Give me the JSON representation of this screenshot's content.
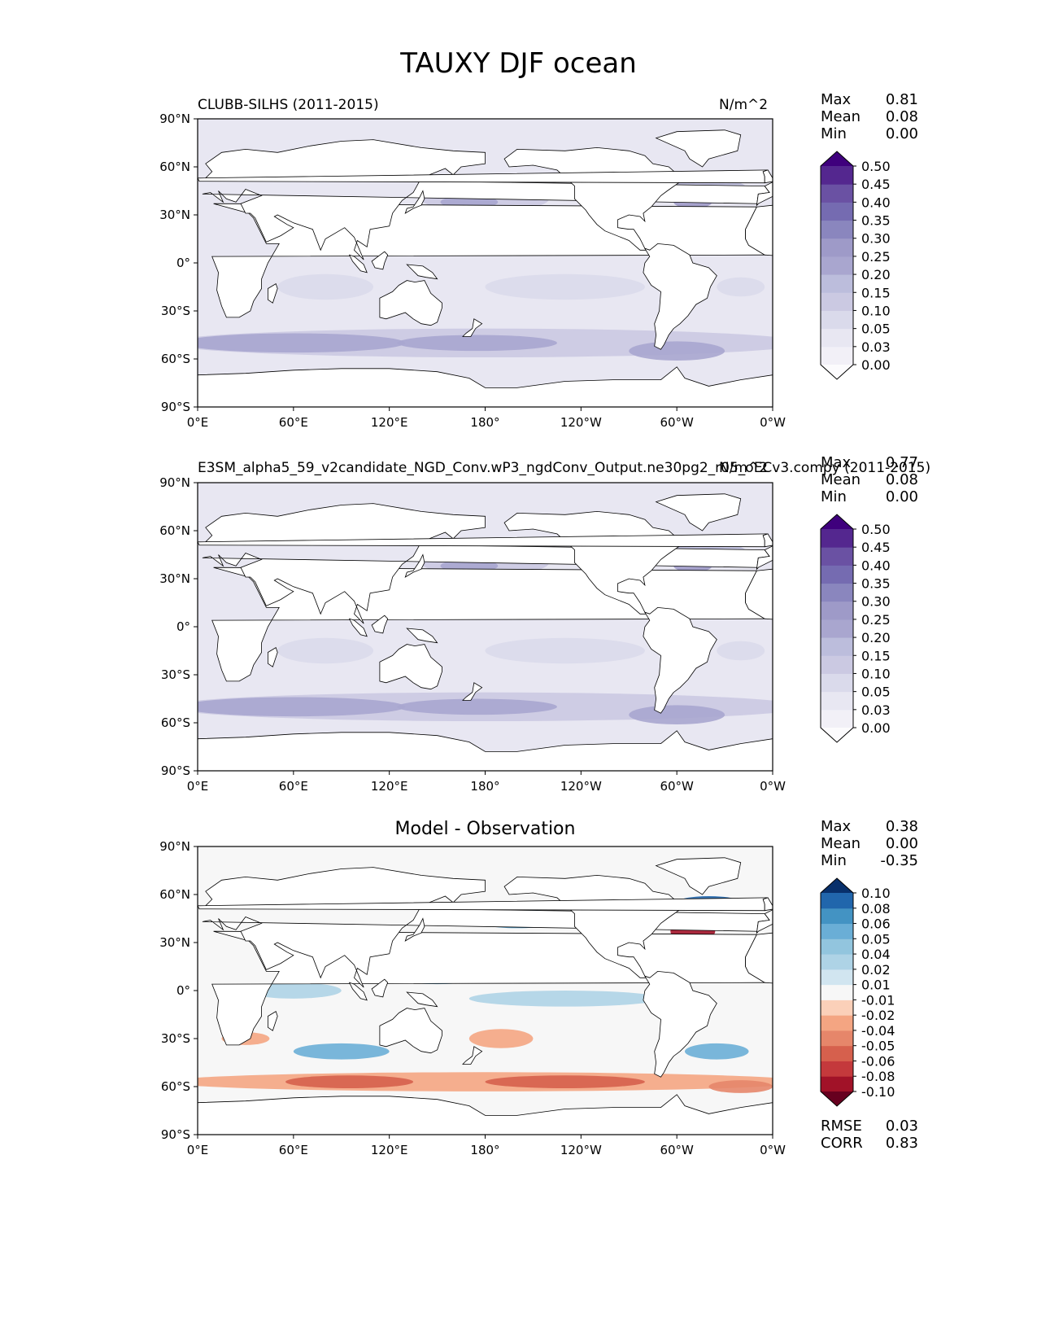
{
  "suptitle": "TAUXY DJF ocean",
  "panels": [
    {
      "title_left": "CLUBB-SILHS (2011-2015)",
      "title_right": "N/m^2",
      "stats": [
        {
          "label": "Max",
          "value": "0.81"
        },
        {
          "label": "Mean",
          "value": "0.08"
        },
        {
          "label": "Min",
          "value": "0.00"
        }
      ],
      "colorbar_labels": [
        "0.50",
        "0.45",
        "0.40",
        "0.35",
        "0.30",
        "0.25",
        "0.20",
        "0.15",
        "0.10",
        "0.05",
        "0.03",
        "0.00"
      ]
    },
    {
      "title_left": "E3SM_alpha5_59_v2candidate_NGD_Conv.wP3_ngdConv_Output.ne30pg2_r05_oECv3.compy (2011-2015)",
      "title_right": "N/m^2",
      "stats": [
        {
          "label": "Max",
          "value": "0.77"
        },
        {
          "label": "Mean",
          "value": "0.08"
        },
        {
          "label": "Min",
          "value": "0.00"
        }
      ],
      "colorbar_labels": [
        "0.50",
        "0.45",
        "0.40",
        "0.35",
        "0.30",
        "0.25",
        "0.20",
        "0.15",
        "0.10",
        "0.05",
        "0.03",
        "0.00"
      ]
    },
    {
      "title_center": "Model - Observation",
      "stats": [
        {
          "label": "Max",
          "value": "0.38"
        },
        {
          "label": "Mean",
          "value": "0.00"
        },
        {
          "label": "Min",
          "value": "-0.35"
        }
      ],
      "colorbar_labels": [
        "0.10",
        "0.08",
        "0.06",
        "0.05",
        "0.04",
        "0.02",
        "0.01",
        "-0.01",
        "-0.02",
        "-0.04",
        "-0.05",
        "-0.06",
        "-0.08",
        "-0.10"
      ],
      "metrics": [
        {
          "label": "RMSE",
          "value": "0.03"
        },
        {
          "label": "CORR",
          "value": "0.83"
        }
      ]
    }
  ],
  "chart_data": {
    "type": "heatmap",
    "title": "TAUXY DJF ocean",
    "units": "N/m^2",
    "xticks": [
      "0°E",
      "60°E",
      "120°E",
      "180°",
      "120°W",
      "60°W",
      "0°W"
    ],
    "yticks": [
      "90°N",
      "60°N",
      "30°N",
      "0°",
      "30°S",
      "60°S",
      "90°S"
    ],
    "xlim": [
      0,
      360
    ],
    "ylim": [
      -90,
      90
    ],
    "levels_main": [
      0.0,
      0.03,
      0.05,
      0.1,
      0.15,
      0.2,
      0.25,
      0.3,
      0.35,
      0.4,
      0.45,
      0.5
    ],
    "levels_diff": [
      -0.1,
      -0.08,
      -0.06,
      -0.05,
      -0.04,
      -0.02,
      -0.01,
      0.01,
      0.02,
      0.04,
      0.05,
      0.06,
      0.08,
      0.1
    ],
    "colors": {
      "purples": [
        "#fcfbfd",
        "#f2f0f7",
        "#e8e7f2",
        "#dadaeb",
        "#cbc9e2",
        "#bcbddc",
        "#a9a6cf",
        "#9e9ac8",
        "#8a86be",
        "#756bb1",
        "#6a51a3",
        "#54278f",
        "#3f007d"
      ],
      "rdbu": [
        "#67001f",
        "#a11228",
        "#c4393c",
        "#d6604d",
        "#e6866a",
        "#f4a582",
        "#fbd0b9",
        "#f7f7f7",
        "#d1e5f0",
        "#aed3e6",
        "#92c5de",
        "#6aaed6",
        "#4393c3",
        "#2166ac",
        "#08306b"
      ]
    }
  }
}
